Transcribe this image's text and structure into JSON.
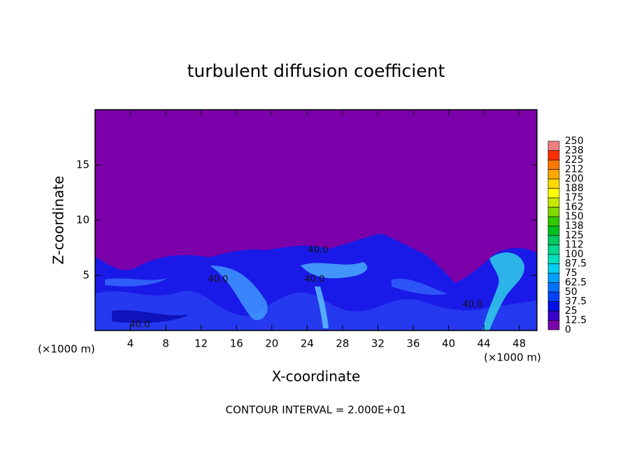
{
  "chart_data": {
    "type": "contour",
    "title": "turbulent diffusion coefficient",
    "x_label": "X-coordinate",
    "y_label": "Z-coordinate",
    "unit_label": "(×1000 m)",
    "contour_interval_label": "CONTOUR INTERVAL = 2.000E+01",
    "contour_labels": [
      "40.0",
      "40.0",
      "40.0",
      "40.0",
      "40.0"
    ],
    "xlim": [
      0,
      50
    ],
    "ylim": [
      0,
      20
    ],
    "xticks": [
      4,
      8,
      12,
      16,
      20,
      24,
      28,
      32,
      36,
      40,
      44,
      48
    ],
    "yticks": [
      5,
      10,
      15
    ],
    "levels": [
      0,
      12.5,
      25,
      37.5,
      50,
      62.5,
      75,
      87.5,
      100,
      112,
      125,
      138,
      150,
      162,
      175,
      188,
      200,
      212,
      225,
      238,
      250
    ],
    "colors": [
      "#7a00a8",
      "#3a00c8",
      "#0010e8",
      "#0040ff",
      "#0070ff",
      "#00a0ff",
      "#00d0f0",
      "#00e0c0",
      "#00d890",
      "#00c860",
      "#00c020",
      "#30c800",
      "#80d800",
      "#c8e800",
      "#ffff00",
      "#ffd800",
      "#ffa800",
      "#ff7800",
      "#ff3000",
      "#f08080"
    ]
  }
}
